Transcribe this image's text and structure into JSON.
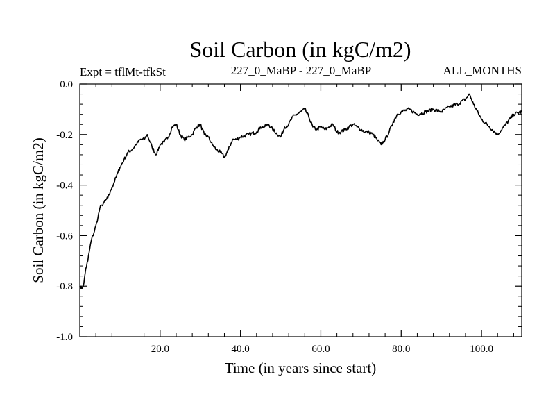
{
  "chart_data": {
    "type": "line",
    "title": "Soil Carbon (in kgC/m2)",
    "subtitle_left": "Expt = tflMt-tfkSt",
    "subtitle_center": "227_0_MaBP - 227_0_MaBP",
    "subtitle_right": "ALL_MONTHS",
    "xlabel": "Time (in years since start)",
    "ylabel": "Soil Carbon (in kgC/m2)",
    "xlim": [
      0,
      110
    ],
    "ylim": [
      -1.0,
      0.0
    ],
    "xticks": [
      20,
      40,
      60,
      80,
      100
    ],
    "xtick_labels": [
      "20.0",
      "40.0",
      "60.0",
      "80.0",
      "100.0"
    ],
    "yticks": [
      0.0,
      -0.2,
      -0.4,
      -0.6,
      -0.8,
      -1.0
    ],
    "ytick_labels": [
      "0.0",
      "-0.2",
      "-0.4",
      "-0.6",
      "-0.8",
      "-1.0"
    ],
    "grid": false,
    "series": [
      {
        "name": "Soil Carbon",
        "color": "#000000",
        "x": [
          0,
          0.5,
          1,
          1.5,
          2,
          2.5,
          3,
          3.5,
          4,
          4.5,
          5,
          5.5,
          6,
          7,
          8,
          9,
          9.5,
          10,
          11,
          12,
          13,
          14,
          15,
          16,
          16.8,
          17.5,
          18,
          19,
          20,
          21,
          22,
          23,
          24,
          25,
          26,
          27,
          28,
          29,
          30,
          31,
          32,
          33,
          34,
          35,
          36,
          37,
          38,
          39,
          40,
          42,
          44,
          45,
          46,
          47,
          48,
          50,
          51,
          52,
          53,
          54,
          55,
          56,
          57,
          58,
          59,
          60,
          61,
          62,
          63,
          64,
          65,
          66,
          67,
          68,
          69,
          70,
          71,
          72,
          73,
          74,
          75,
          76,
          77,
          78,
          79,
          80,
          82,
          84,
          86,
          88,
          90,
          92,
          94,
          96,
          97,
          98,
          100,
          102,
          104,
          106,
          108,
          110
        ],
        "values": [
          -0.8,
          -0.81,
          -0.79,
          -0.73,
          -0.7,
          -0.65,
          -0.61,
          -0.59,
          -0.56,
          -0.53,
          -0.49,
          -0.48,
          -0.47,
          -0.45,
          -0.41,
          -0.37,
          -0.35,
          -0.33,
          -0.3,
          -0.27,
          -0.26,
          -0.24,
          -0.22,
          -0.22,
          -0.2,
          -0.23,
          -0.25,
          -0.28,
          -0.24,
          -0.23,
          -0.21,
          -0.17,
          -0.16,
          -0.2,
          -0.22,
          -0.21,
          -0.2,
          -0.17,
          -0.16,
          -0.2,
          -0.21,
          -0.24,
          -0.26,
          -0.27,
          -0.29,
          -0.26,
          -0.22,
          -0.22,
          -0.21,
          -0.2,
          -0.19,
          -0.17,
          -0.17,
          -0.16,
          -0.18,
          -0.21,
          -0.17,
          -0.16,
          -0.13,
          -0.12,
          -0.11,
          -0.1,
          -0.13,
          -0.17,
          -0.18,
          -0.17,
          -0.18,
          -0.17,
          -0.16,
          -0.19,
          -0.19,
          -0.18,
          -0.17,
          -0.16,
          -0.17,
          -0.18,
          -0.19,
          -0.19,
          -0.2,
          -0.22,
          -0.24,
          -0.22,
          -0.19,
          -0.15,
          -0.12,
          -0.11,
          -0.1,
          -0.12,
          -0.11,
          -0.1,
          -0.11,
          -0.09,
          -0.08,
          -0.06,
          -0.04,
          -0.08,
          -0.14,
          -0.17,
          -0.2,
          -0.16,
          -0.12,
          -0.11
        ]
      }
    ]
  }
}
